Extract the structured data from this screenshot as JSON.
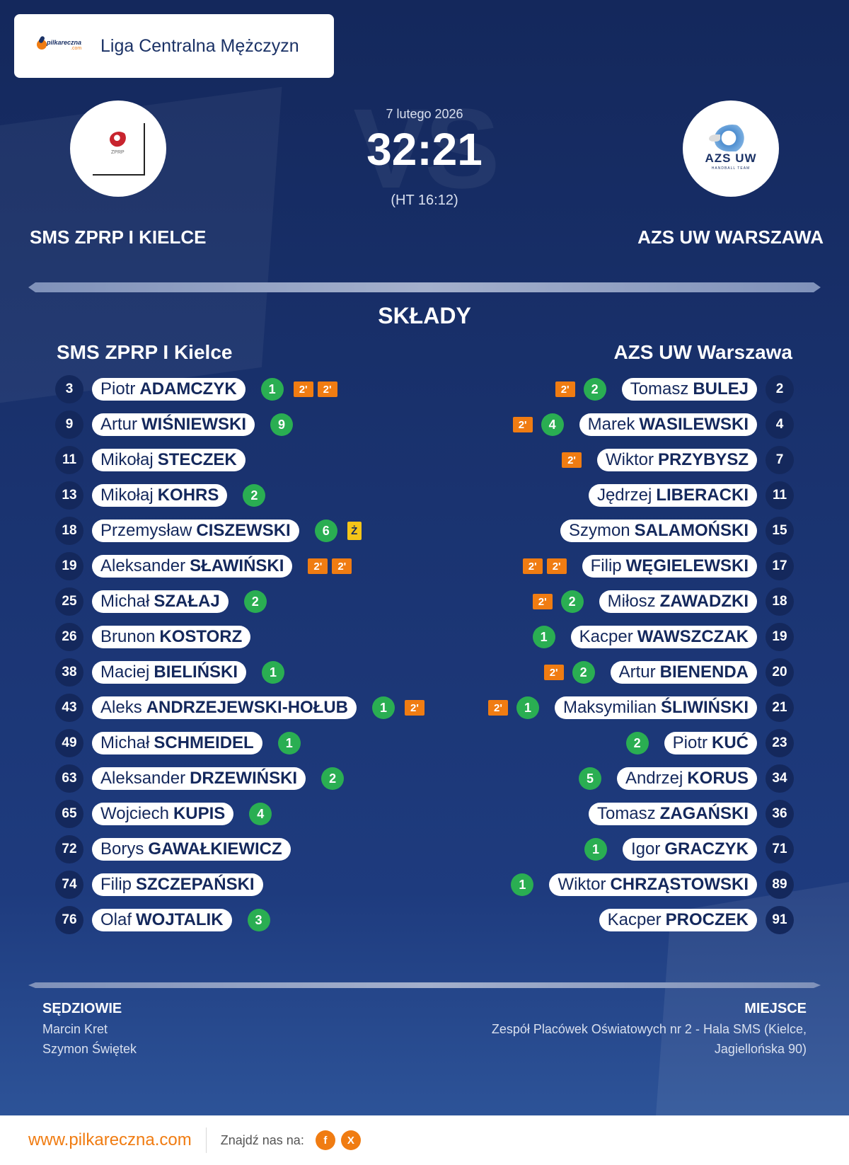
{
  "league": {
    "name": "Liga Centralna Mężczyzn",
    "logo_text": "pilkareczna",
    "logo_sub": ".com"
  },
  "match": {
    "date": "7 lutego 2026",
    "score": "32:21",
    "halftime": "(HT 16:12)",
    "vs": "VS"
  },
  "home": {
    "name_upper": "SMS ZPRP I KIELCE",
    "name": "SMS ZPRP I Kielce",
    "logo_text": "ZPRP",
    "players": [
      {
        "number": "3",
        "first": "Piotr",
        "last": "ADAMCZYK",
        "goals": "1",
        "penalties": [
          "2'",
          "2'"
        ],
        "card": ""
      },
      {
        "number": "9",
        "first": "Artur",
        "last": "WIŚNIEWSKI",
        "goals": "9",
        "penalties": [],
        "card": ""
      },
      {
        "number": "11",
        "first": "Mikołaj",
        "last": "STECZEK",
        "goals": "",
        "penalties": [],
        "card": ""
      },
      {
        "number": "13",
        "first": "Mikołaj",
        "last": "KOHRS",
        "goals": "2",
        "penalties": [],
        "card": ""
      },
      {
        "number": "18",
        "first": "Przemysław",
        "last": "CISZEWSKI",
        "goals": "6",
        "penalties": [],
        "card": "Ż"
      },
      {
        "number": "19",
        "first": "Aleksander",
        "last": "SŁAWIŃSKI",
        "goals": "",
        "penalties": [
          "2'",
          "2'"
        ],
        "card": ""
      },
      {
        "number": "25",
        "first": "Michał",
        "last": "SZAŁAJ",
        "goals": "2",
        "penalties": [],
        "card": ""
      },
      {
        "number": "26",
        "first": "Brunon",
        "last": "KOSTORZ",
        "goals": "",
        "penalties": [],
        "card": ""
      },
      {
        "number": "38",
        "first": "Maciej",
        "last": "BIELIŃSKI",
        "goals": "1",
        "penalties": [],
        "card": ""
      },
      {
        "number": "43",
        "first": "Aleks",
        "last": "ANDRZEJEWSKI-HOŁUB",
        "goals": "1",
        "penalties": [
          "2'"
        ],
        "card": ""
      },
      {
        "number": "49",
        "first": "Michał",
        "last": "SCHMEIDEL",
        "goals": "1",
        "penalties": [],
        "card": ""
      },
      {
        "number": "63",
        "first": "Aleksander",
        "last": "DRZEWIŃSKI",
        "goals": "2",
        "penalties": [],
        "card": ""
      },
      {
        "number": "65",
        "first": "Wojciech",
        "last": "KUPIS",
        "goals": "4",
        "penalties": [],
        "card": ""
      },
      {
        "number": "72",
        "first": "Borys",
        "last": "GAWAŁKIEWICZ",
        "goals": "",
        "penalties": [],
        "card": ""
      },
      {
        "number": "74",
        "first": "Filip",
        "last": "SZCZEPAŃSKI",
        "goals": "",
        "penalties": [],
        "card": ""
      },
      {
        "number": "76",
        "first": "Olaf",
        "last": "WOJTALIK",
        "goals": "3",
        "penalties": [],
        "card": ""
      }
    ]
  },
  "away": {
    "name_upper": "AZS UW WARSZAWA",
    "name": "AZS UW Warszawa",
    "logo_text": "AZS UW",
    "logo_sub": "HANDBALL TEAM",
    "players": [
      {
        "number": "2",
        "first": "Tomasz",
        "last": "BULEJ",
        "goals": "2",
        "penalties": [
          "2'"
        ],
        "card": ""
      },
      {
        "number": "4",
        "first": "Marek",
        "last": "WASILEWSKI",
        "goals": "4",
        "penalties": [
          "2'"
        ],
        "card": ""
      },
      {
        "number": "7",
        "first": "Wiktor",
        "last": "PRZYBYSZ",
        "goals": "",
        "penalties": [
          "2'"
        ],
        "card": ""
      },
      {
        "number": "11",
        "first": "Jędrzej",
        "last": "LIBERACKI",
        "goals": "",
        "penalties": [],
        "card": ""
      },
      {
        "number": "15",
        "first": "Szymon",
        "last": "SALAMOŃSKI",
        "goals": "",
        "penalties": [],
        "card": ""
      },
      {
        "number": "17",
        "first": "Filip",
        "last": "WĘGIELEWSKI",
        "goals": "",
        "penalties": [
          "2'",
          "2'"
        ],
        "card": ""
      },
      {
        "number": "18",
        "first": "Miłosz",
        "last": "ZAWADZKI",
        "goals": "2",
        "penalties": [
          "2'"
        ],
        "card": ""
      },
      {
        "number": "19",
        "first": "Kacper",
        "last": "WAWSZCZAK",
        "goals": "1",
        "penalties": [],
        "card": ""
      },
      {
        "number": "20",
        "first": "Artur",
        "last": "BIENENDA",
        "goals": "2",
        "penalties": [
          "2'"
        ],
        "card": ""
      },
      {
        "number": "21",
        "first": "Maksymilian",
        "last": "ŚLIWIŃSKI",
        "goals": "1",
        "penalties": [
          "2'"
        ],
        "card": ""
      },
      {
        "number": "23",
        "first": "Piotr",
        "last": "KUĆ",
        "goals": "2",
        "penalties": [],
        "card": ""
      },
      {
        "number": "34",
        "first": "Andrzej",
        "last": "KORUS",
        "goals": "5",
        "penalties": [],
        "card": ""
      },
      {
        "number": "36",
        "first": "Tomasz",
        "last": "ZAGAŃSKI",
        "goals": "",
        "penalties": [],
        "card": ""
      },
      {
        "number": "71",
        "first": "Igor",
        "last": "GRACZYK",
        "goals": "1",
        "penalties": [],
        "card": ""
      },
      {
        "number": "89",
        "first": "Wiktor",
        "last": "CHRZĄSTOWSKI",
        "goals": "1",
        "penalties": [],
        "card": ""
      },
      {
        "number": "91",
        "first": "Kacper",
        "last": "PROCZEK",
        "goals": "",
        "penalties": [],
        "card": ""
      }
    ]
  },
  "squads_title": "SKŁADY",
  "referees": {
    "title": "SĘDZIOWIE",
    "names": [
      "Marcin Kret",
      "Szymon Świętek"
    ]
  },
  "venue": {
    "title": "MIEJSCE",
    "line1": "Zespół Placówek Oświatowych nr 2 - Hala SMS (Kielce,",
    "line2": "Jagiellońska 90)"
  },
  "footer": {
    "site": "www.pilkareczna.com",
    "find_us": "Znajdź nas na:",
    "social": [
      {
        "icon": "facebook-icon",
        "glyph": "f"
      },
      {
        "icon": "x-icon",
        "glyph": "X"
      }
    ]
  },
  "colors": {
    "navy": "#14285c",
    "goal_green": "#2aae52",
    "penalty_orange": "#f07c12",
    "yellow_card": "#f5c518"
  }
}
